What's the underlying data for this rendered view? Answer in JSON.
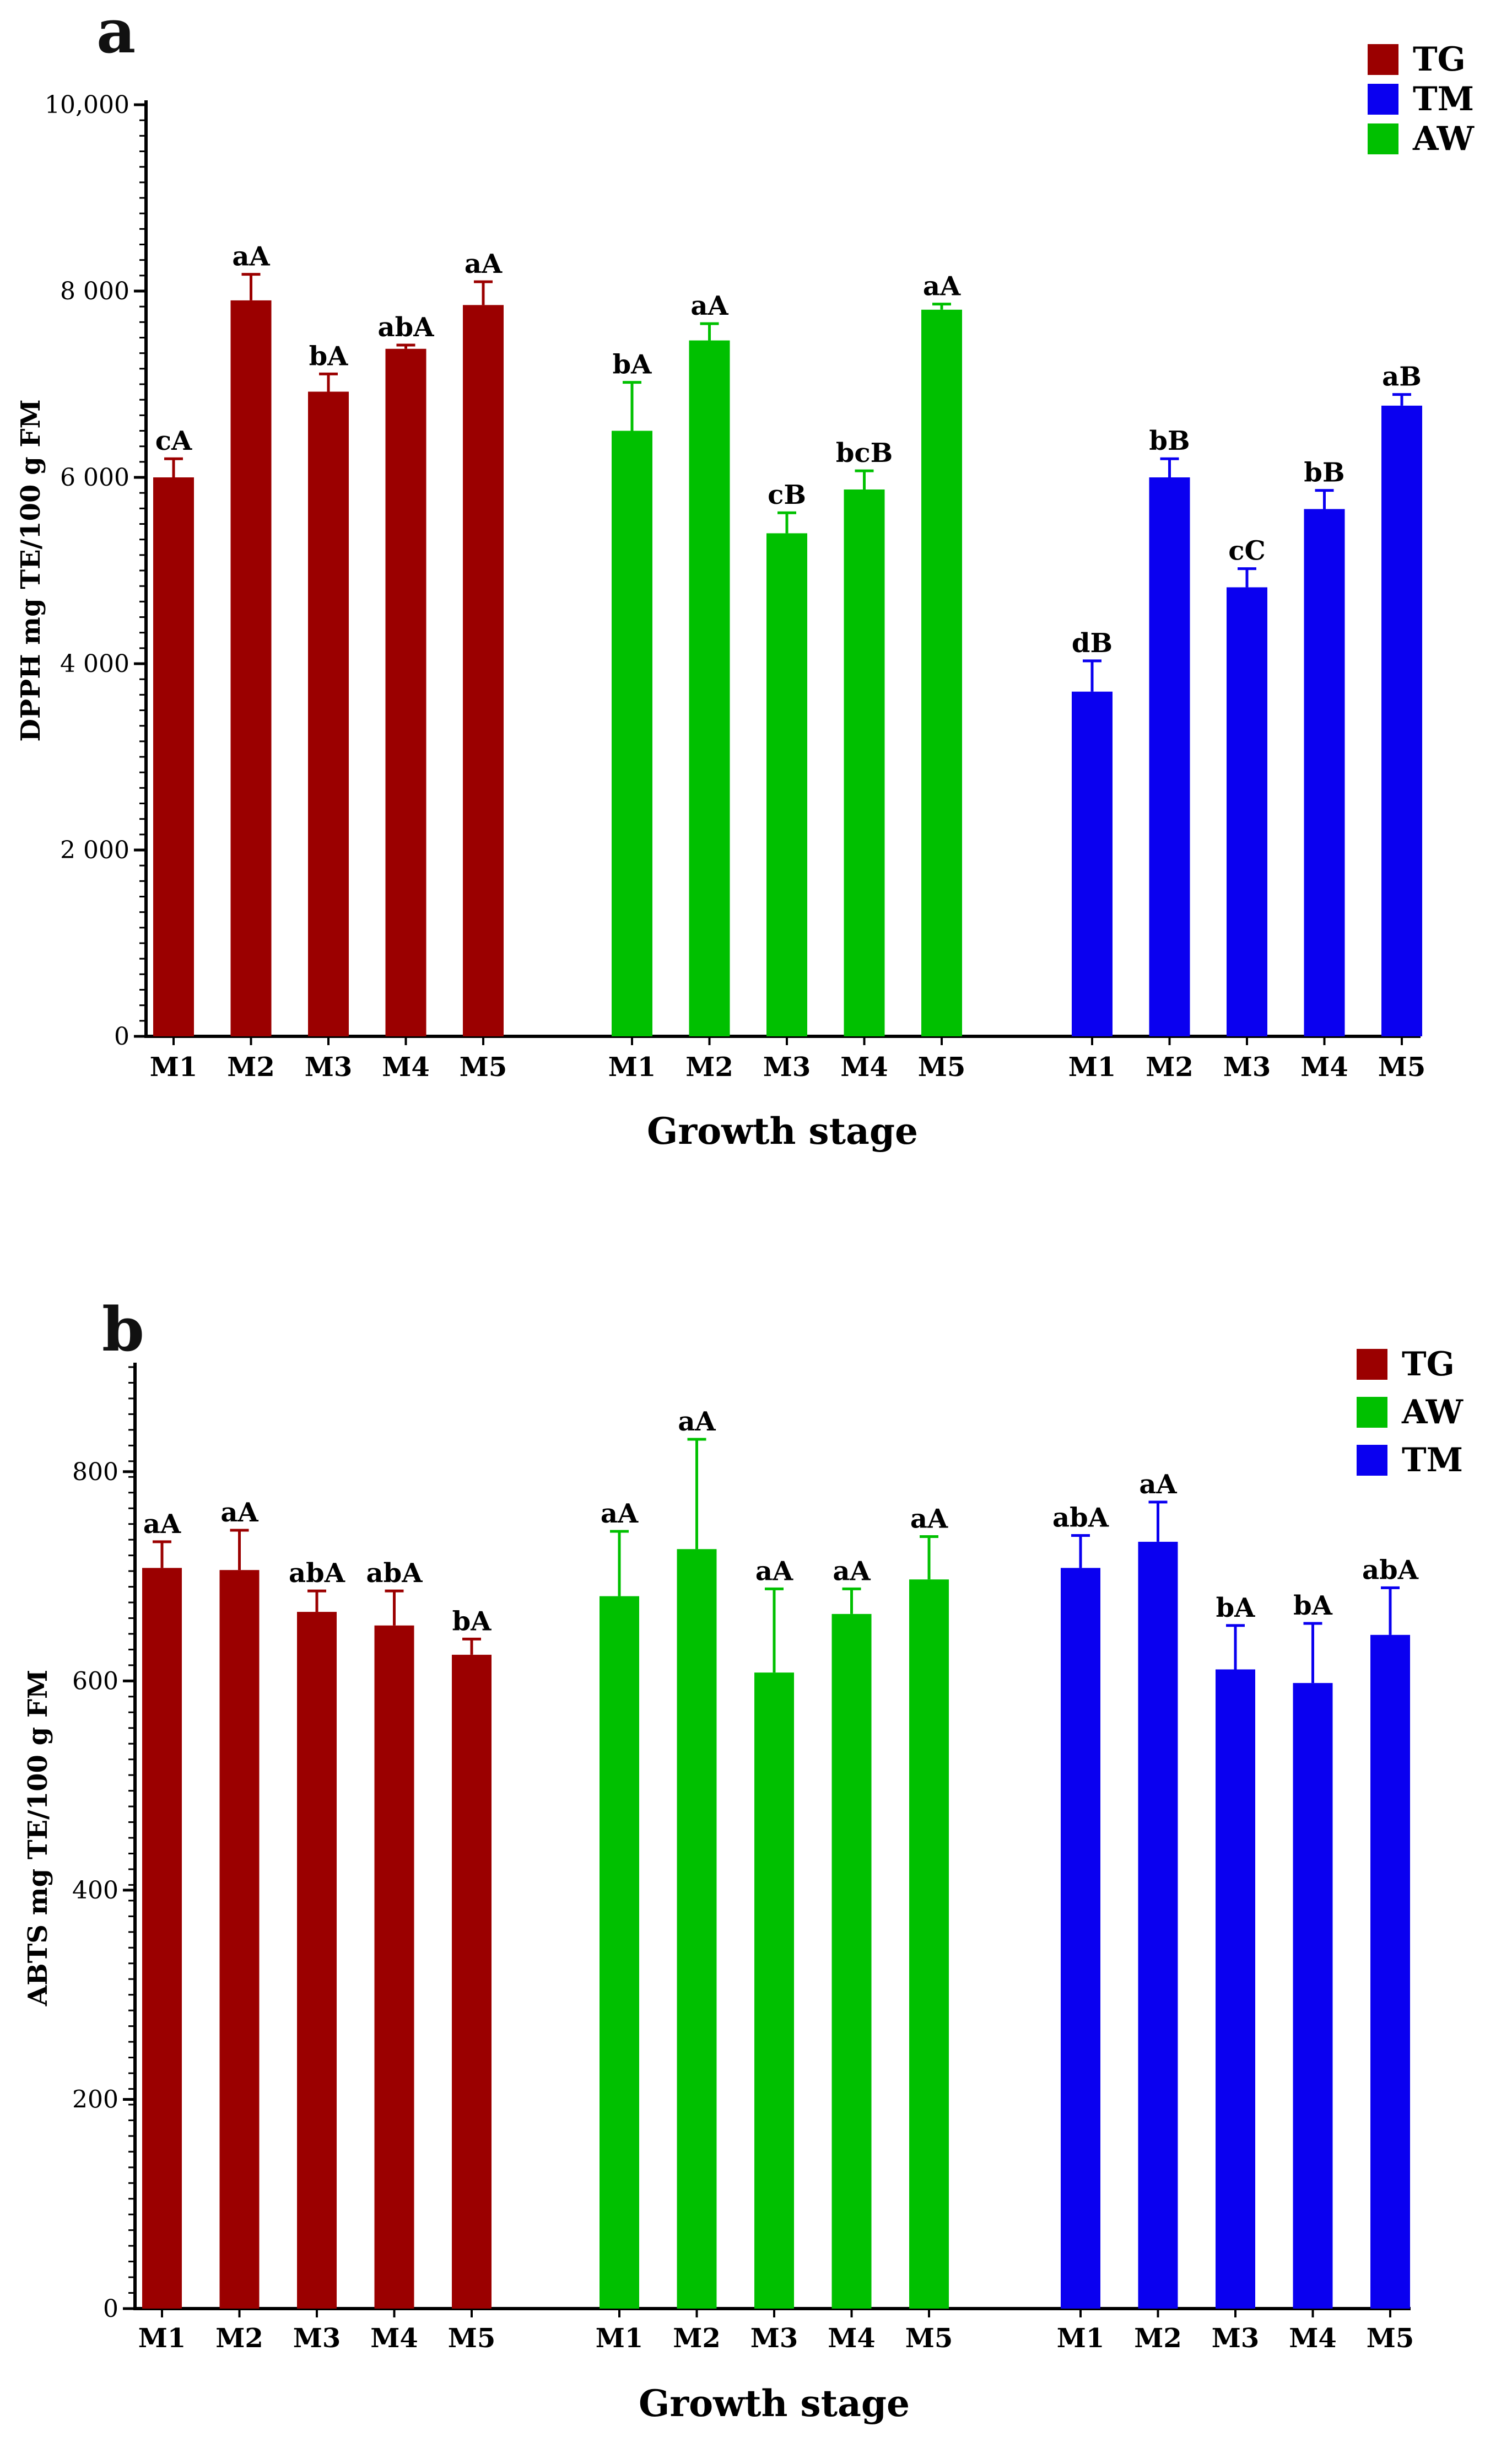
{
  "chart_data": [
    {
      "panel": "a",
      "type": "bar",
      "title": "",
      "ylabel": "DPPH mg TE/100 g FM",
      "xlabel": "Growth stage",
      "ylim": [
        0,
        10000
      ],
      "yticks": [
        0,
        2000,
        4000,
        6000,
        8000,
        10000
      ],
      "ytick_labels": [
        "0",
        "2 000",
        "4 000",
        "6 000",
        "8 000",
        "10,000"
      ],
      "categories": [
        "M1",
        "M2",
        "M3",
        "M4",
        "M5"
      ],
      "legend": [
        {
          "name": "TG",
          "color": "#9b0000"
        },
        {
          "name": "TM",
          "color": "#0a00f0"
        },
        {
          "name": "AW",
          "color": "#00c000"
        }
      ],
      "series": [
        {
          "name": "TG",
          "color": "#9b0000",
          "values": [
            6000,
            7900,
            6920,
            7380,
            7850
          ],
          "errors": [
            200,
            280,
            190,
            40,
            250
          ],
          "labels": [
            "cA",
            "aA",
            "bA",
            "abA",
            "aA"
          ]
        },
        {
          "name": "AW",
          "color": "#00c000",
          "values": [
            6500,
            7470,
            5400,
            5870,
            7800
          ],
          "errors": [
            520,
            180,
            220,
            200,
            60
          ],
          "labels": [
            "bA",
            "aA",
            "cB",
            "bcB",
            "aA"
          ]
        },
        {
          "name": "TM",
          "color": "#0a00f0",
          "values": [
            3700,
            6000,
            4820,
            5660,
            6770
          ],
          "errors": [
            330,
            200,
            200,
            200,
            120
          ],
          "labels": [
            "dB",
            "bB",
            "cC",
            "bB",
            "aB"
          ]
        }
      ]
    },
    {
      "panel": "b",
      "type": "bar",
      "title": "",
      "ylabel": "ABTS mg TE/100 g FM",
      "xlabel": "Growth stage",
      "ylim": [
        0,
        900
      ],
      "yticks": [
        0,
        200,
        400,
        600,
        800
      ],
      "ytick_labels": [
        "0",
        "200",
        "400",
        "600",
        "800"
      ],
      "categories": [
        "M1",
        "M2",
        "M3",
        "M4",
        "M5"
      ],
      "legend": [
        {
          "name": "TG",
          "color": "#9b0000"
        },
        {
          "name": "AW",
          "color": "#00c000"
        },
        {
          "name": "TM",
          "color": "#0a00f0"
        }
      ],
      "series": [
        {
          "name": "TG",
          "color": "#9b0000",
          "values": [
            708,
            706,
            666,
            653,
            625
          ],
          "errors": [
            25,
            38,
            20,
            33,
            15
          ],
          "labels": [
            "aA",
            "aA",
            "abA",
            "abA",
            "bA"
          ]
        },
        {
          "name": "AW",
          "color": "#00c000",
          "values": [
            681,
            726,
            608,
            664,
            697
          ],
          "errors": [
            62,
            105,
            80,
            24,
            41
          ],
          "labels": [
            "aA",
            "aA",
            "aA",
            "aA",
            "aA"
          ]
        },
        {
          "name": "TM",
          "color": "#0a00f0",
          "values": [
            708,
            733,
            611,
            598,
            644
          ],
          "errors": [
            31,
            38,
            42,
            57,
            45
          ],
          "labels": [
            "abA",
            "aA",
            "bA",
            "bA",
            "abA"
          ]
        }
      ]
    }
  ]
}
